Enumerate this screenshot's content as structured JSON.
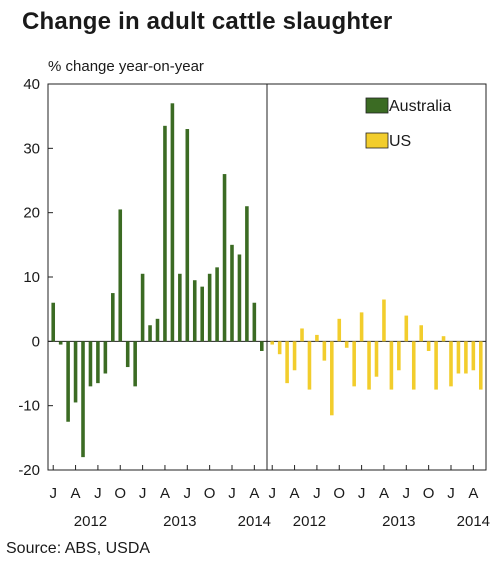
{
  "title": "Change in adult cattle slaughter",
  "ylabel": "% change year-on-year",
  "source": "Source: ABS, USDA",
  "colors": {
    "australia": "#3b6b23",
    "us": "#f2cd2c"
  },
  "chart_data": {
    "type": "bar",
    "title": "Change in adult cattle slaughter",
    "ylabel": "% change year-on-year",
    "ylim": [
      -20,
      40
    ],
    "yticks": [
      -20,
      -10,
      0,
      10,
      20,
      30,
      40
    ],
    "grid": false,
    "legend_position": "top-right",
    "panels": [
      {
        "series": {
          "name": "Australia",
          "values": [
            6,
            -0.5,
            -12.5,
            -9.5,
            -18,
            -7,
            -6.5,
            -5,
            7.5,
            20.5,
            -4,
            -7,
            10.5,
            2.5,
            3.5,
            33.5,
            37,
            10.5,
            33,
            9.5,
            8.5,
            10.5,
            11.5,
            26,
            15,
            13.5,
            21,
            6,
            -1.5
          ]
        },
        "month_ticks": [
          "J",
          "A",
          "J",
          "O",
          "J",
          "A",
          "J",
          "O",
          "J",
          "A"
        ],
        "year_labels": [
          "2012",
          "2013",
          "2014"
        ]
      },
      {
        "series": {
          "name": "US",
          "values": [
            -0.5,
            -2,
            -6.5,
            -4.5,
            2,
            -7.5,
            1,
            -3,
            -11.5,
            3.5,
            -1,
            -7,
            4.5,
            -7.5,
            -5.5,
            6.5,
            -7.5,
            -4.5,
            4,
            -7.5,
            2.5,
            -1.5,
            -7.5,
            0.8,
            -7,
            -5,
            -5,
            -4.5,
            -7.5
          ]
        },
        "month_ticks": [
          "J",
          "A",
          "J",
          "O",
          "J",
          "A",
          "J",
          "O",
          "J",
          "A"
        ],
        "year_labels": [
          "2012",
          "2013",
          "2014"
        ]
      }
    ]
  }
}
